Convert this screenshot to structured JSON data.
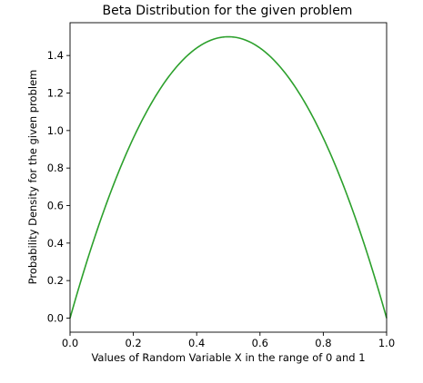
{
  "chart_data": {
    "type": "line",
    "title": "Beta Distribution for the given problem",
    "xlabel": "Values of Random Variable X in the range of 0 and 1",
    "ylabel": "Probability Density for the given problem",
    "xlim": [
      0.0,
      1.0
    ],
    "ylim": [
      -0.075,
      1.575
    ],
    "x_ticks": [
      0.0,
      0.2,
      0.4,
      0.6,
      0.8,
      1.0
    ],
    "x_tick_labels": [
      "0.0",
      "0.2",
      "0.4",
      "0.6",
      "0.8",
      "1.0"
    ],
    "y_ticks": [
      0.0,
      0.2,
      0.4,
      0.6,
      0.8,
      1.0,
      1.2,
      1.4
    ],
    "y_tick_labels": [
      "0.0",
      "0.2",
      "0.4",
      "0.6",
      "0.8",
      "1.0",
      "1.2",
      "1.4"
    ],
    "grid": false,
    "series": [
      {
        "color": "#2ca02c",
        "x": [
          0.0,
          0.05,
          0.1,
          0.15,
          0.2,
          0.25,
          0.3,
          0.35,
          0.4,
          0.45,
          0.5,
          0.55,
          0.6,
          0.65,
          0.7,
          0.75,
          0.8,
          0.85,
          0.9,
          0.95,
          1.0
        ],
        "y": [
          0.0,
          0.285,
          0.54,
          0.765,
          0.96,
          1.125,
          1.26,
          1.365,
          1.44,
          1.485,
          1.5,
          1.485,
          1.44,
          1.365,
          1.26,
          1.125,
          0.96,
          0.765,
          0.54,
          0.285,
          0.0
        ]
      }
    ]
  }
}
